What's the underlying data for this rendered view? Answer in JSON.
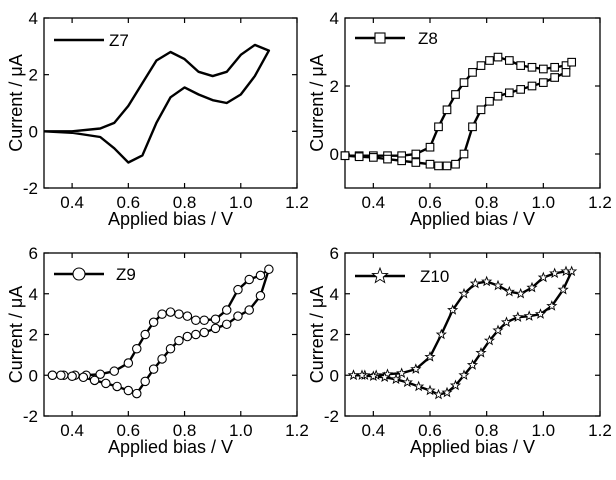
{
  "chart_data": [
    {
      "type": "line",
      "xlabel": "Applied bias / V",
      "ylabel": "Current  / μA",
      "xlim": [
        0.3,
        1.2
      ],
      "ylim": [
        -2,
        4
      ],
      "xticks": [
        0.4,
        0.6,
        0.8,
        1.0,
        1.2
      ],
      "xtick_labels": [
        "0.4",
        "0.6",
        "0.8",
        "1.0",
        "1.2"
      ],
      "yticks": [
        -2,
        0,
        2,
        4
      ],
      "ytick_labels": [
        "-2",
        "0",
        "2",
        "4"
      ],
      "grid": false,
      "legend": "top-left",
      "series": [
        {
          "name": "Z7",
          "marker": "none",
          "x": [
            0.3,
            0.4,
            0.5,
            0.55,
            0.6,
            0.65,
            0.7,
            0.75,
            0.8,
            0.85,
            0.9,
            0.95,
            1.0,
            1.05,
            1.1,
            1.05,
            1.0,
            0.95,
            0.9,
            0.85,
            0.8,
            0.75,
            0.7,
            0.65,
            0.6,
            0.55,
            0.5,
            0.4,
            0.3
          ],
          "y": [
            0.0,
            0.0,
            0.1,
            0.3,
            0.9,
            1.7,
            2.5,
            2.8,
            2.55,
            2.1,
            1.95,
            2.1,
            2.7,
            3.05,
            2.85,
            1.95,
            1.3,
            1.0,
            1.1,
            1.3,
            1.55,
            1.2,
            0.3,
            -0.85,
            -1.1,
            -0.6,
            -0.2,
            -0.05,
            0.0
          ]
        }
      ]
    },
    {
      "type": "line",
      "xlabel": "Applied bias / V",
      "ylabel": "Current  / μA",
      "xlim": [
        0.3,
        1.2
      ],
      "ylim": [
        -1,
        4
      ],
      "xticks": [
        0.4,
        0.6,
        0.8,
        1.0,
        1.2
      ],
      "xtick_labels": [
        "0.4",
        "0.6",
        "0.8",
        "1.0",
        "1.2"
      ],
      "yticks": [
        0,
        2,
        4
      ],
      "ytick_labels": [
        "0",
        "2",
        "4"
      ],
      "grid": false,
      "legend": "top-left",
      "series": [
        {
          "name": "Z8",
          "marker": "square",
          "x": [
            0.3,
            0.35,
            0.4,
            0.45,
            0.5,
            0.55,
            0.6,
            0.63,
            0.66,
            0.69,
            0.72,
            0.75,
            0.78,
            0.81,
            0.84,
            0.88,
            0.92,
            0.96,
            1.0,
            1.04,
            1.08,
            1.1,
            1.08,
            1.04,
            1.0,
            0.96,
            0.92,
            0.88,
            0.84,
            0.81,
            0.78,
            0.75,
            0.72,
            0.69,
            0.66,
            0.63,
            0.6,
            0.55,
            0.5,
            0.45,
            0.4,
            0.35,
            0.3
          ],
          "y": [
            -0.05,
            -0.05,
            -0.05,
            -0.05,
            -0.05,
            0.0,
            0.2,
            0.8,
            1.3,
            1.75,
            2.1,
            2.4,
            2.6,
            2.75,
            2.85,
            2.75,
            2.6,
            2.55,
            2.5,
            2.55,
            2.6,
            2.7,
            2.4,
            2.25,
            2.1,
            2.0,
            1.9,
            1.8,
            1.7,
            1.55,
            1.3,
            0.8,
            0.0,
            -0.3,
            -0.35,
            -0.35,
            -0.3,
            -0.25,
            -0.2,
            -0.15,
            -0.1,
            -0.08,
            -0.05
          ]
        }
      ]
    },
    {
      "type": "line",
      "xlabel": "Applied bias / V",
      "ylabel": "Current  / μA",
      "xlim": [
        0.3,
        1.2
      ],
      "ylim": [
        -2,
        6
      ],
      "xticks": [
        0.4,
        0.6,
        0.8,
        1.0,
        1.2
      ],
      "xtick_labels": [
        "0.4",
        "0.6",
        "0.8",
        "1.0",
        "1.2"
      ],
      "yticks": [
        -2,
        0,
        2,
        4,
        6
      ],
      "ytick_labels": [
        "-2",
        "0",
        "2",
        "4",
        "6"
      ],
      "grid": false,
      "legend": "top-left",
      "series": [
        {
          "name": "Z9",
          "marker": "circle",
          "x": [
            0.33,
            0.37,
            0.41,
            0.45,
            0.5,
            0.55,
            0.6,
            0.63,
            0.66,
            0.69,
            0.72,
            0.75,
            0.78,
            0.81,
            0.84,
            0.87,
            0.91,
            0.95,
            0.99,
            1.03,
            1.07,
            1.1,
            1.07,
            1.03,
            0.99,
            0.95,
            0.91,
            0.87,
            0.84,
            0.81,
            0.78,
            0.75,
            0.72,
            0.69,
            0.66,
            0.63,
            0.6,
            0.56,
            0.52,
            0.48,
            0.44,
            0.4,
            0.36,
            0.33
          ],
          "y": [
            0.0,
            0.0,
            0.0,
            0.0,
            0.05,
            0.2,
            0.6,
            1.3,
            2.0,
            2.6,
            3.0,
            3.1,
            3.0,
            2.9,
            2.7,
            2.7,
            2.75,
            3.2,
            4.2,
            4.7,
            4.9,
            5.2,
            3.9,
            3.2,
            2.9,
            2.5,
            2.3,
            2.1,
            2.0,
            1.9,
            1.7,
            1.3,
            0.8,
            0.3,
            -0.3,
            -0.9,
            -0.75,
            -0.55,
            -0.4,
            -0.25,
            -0.1,
            -0.05,
            0.0,
            0.0
          ]
        }
      ]
    },
    {
      "type": "line",
      "xlabel": "Applied bias / V",
      "ylabel": "Current  / μA",
      "xlim": [
        0.3,
        1.2
      ],
      "ylim": [
        -2,
        6
      ],
      "xticks": [
        0.4,
        0.6,
        0.8,
        1.0,
        1.2
      ],
      "xtick_labels": [
        "0.4",
        "0.6",
        "0.8",
        "1.0",
        "1.2"
      ],
      "yticks": [
        -2,
        0,
        2,
        4,
        6
      ],
      "ytick_labels": [
        "-2",
        "0",
        "2",
        "4",
        "6"
      ],
      "grid": false,
      "legend": "top-left",
      "series": [
        {
          "name": "Z10",
          "marker": "star",
          "x": [
            0.33,
            0.37,
            0.41,
            0.45,
            0.5,
            0.55,
            0.6,
            0.64,
            0.68,
            0.72,
            0.76,
            0.8,
            0.84,
            0.88,
            0.92,
            0.96,
            1.0,
            1.04,
            1.08,
            1.1,
            1.07,
            1.03,
            0.99,
            0.95,
            0.91,
            0.87,
            0.84,
            0.81,
            0.78,
            0.75,
            0.72,
            0.69,
            0.66,
            0.63,
            0.6,
            0.56,
            0.52,
            0.48,
            0.44,
            0.4,
            0.36,
            0.33
          ],
          "y": [
            0.0,
            0.0,
            0.0,
            0.05,
            0.1,
            0.3,
            0.9,
            2.0,
            3.2,
            4.0,
            4.5,
            4.6,
            4.4,
            4.1,
            4.0,
            4.3,
            4.8,
            5.0,
            5.1,
            5.1,
            4.2,
            3.4,
            3.0,
            2.9,
            2.85,
            2.6,
            2.2,
            1.7,
            1.1,
            0.5,
            0.0,
            -0.5,
            -0.85,
            -0.95,
            -0.75,
            -0.55,
            -0.35,
            -0.2,
            -0.1,
            -0.05,
            0.0,
            0.0
          ]
        }
      ]
    }
  ]
}
